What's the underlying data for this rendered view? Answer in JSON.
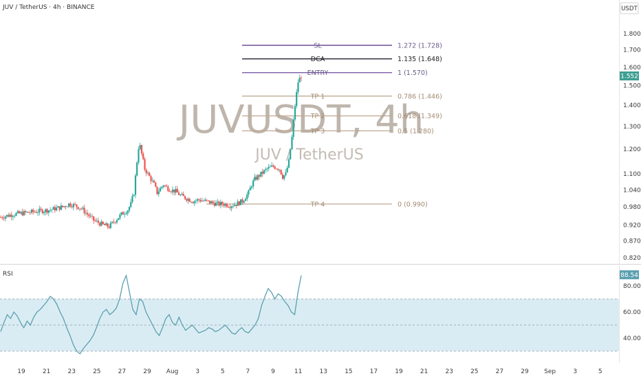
{
  "header": {
    "symbol_line": "JUV / TetherUS · 4h · BINANCE"
  },
  "watermark": {
    "ticker": "JUVUSDT, 4h",
    "name": "JUV / TetherUS"
  },
  "price_unit": "USDT",
  "current_price": "1.552",
  "rsi_label": "RSI",
  "rsi_current": "88.54",
  "colors": {
    "up": "#26a69a",
    "down": "#ef5350",
    "fib_sl": "#6a4c93",
    "fib_dca": "#2c2c3a",
    "fib_entry": "#7a5aa8",
    "fib_tp": "#bfa890",
    "rsi_line": "#5a9fb0",
    "rsi_band": "#bcdcea"
  },
  "chart_data": [
    {
      "type": "candlestick",
      "title": "JUV / TetherUS · 4h · BINANCE",
      "y_axis": {
        "scale": "log",
        "ylim": [
          0.8,
          1.9
        ],
        "ticks": [
          "1.800",
          "1.700",
          "1.600",
          "1.500",
          "1.400",
          "1.300",
          "1.200",
          "1.100",
          "1.040",
          "0.980",
          "0.920",
          "0.870",
          "0.820"
        ]
      },
      "x_axis": {
        "ticks": [
          "19",
          "21",
          "23",
          "25",
          "27",
          "29",
          "Aug",
          "3",
          "5",
          "7",
          "9",
          "11",
          "13",
          "15",
          "17",
          "19",
          "21",
          "23",
          "25",
          "27",
          "29",
          "Sep",
          "3",
          "5"
        ]
      },
      "price_path": [
        [
          0,
          0.945
        ],
        [
          4,
          0.955
        ],
        [
          8,
          0.96
        ],
        [
          12,
          0.965
        ],
        [
          16,
          0.97
        ],
        [
          20,
          0.98
        ],
        [
          22,
          0.99
        ],
        [
          24,
          0.985
        ],
        [
          26,
          0.975
        ],
        [
          28,
          0.955
        ],
        [
          30,
          0.935
        ],
        [
          33,
          0.92
        ],
        [
          35,
          0.915
        ],
        [
          37,
          0.935
        ],
        [
          39,
          0.955
        ],
        [
          41,
          0.97
        ],
        [
          42,
          0.99
        ],
        [
          43,
          1.03
        ],
        [
          44,
          1.15
        ],
        [
          44.7,
          1.23
        ],
        [
          45.5,
          1.18
        ],
        [
          46.5,
          1.12
        ],
        [
          47.5,
          1.1
        ],
        [
          48.5,
          1.08
        ],
        [
          49.5,
          1.06
        ],
        [
          50.5,
          1.03
        ],
        [
          51.5,
          1.045
        ],
        [
          52.5,
          1.06
        ],
        [
          53.5,
          1.05
        ],
        [
          55,
          1.04
        ],
        [
          56.5,
          1.035
        ],
        [
          58,
          1.02
        ],
        [
          60,
          1.01
        ],
        [
          62,
          1.0
        ],
        [
          64,
          1.005
        ],
        [
          66,
          1.0
        ],
        [
          68,
          0.995
        ],
        [
          70,
          0.99
        ],
        [
          72,
          0.99
        ],
        [
          74,
          0.985
        ],
        [
          76,
          0.99
        ],
        [
          78,
          1.0
        ],
        [
          80,
          1.03
        ],
        [
          81,
          1.06
        ],
        [
          82,
          1.08
        ],
        [
          84,
          1.1
        ],
        [
          86,
          1.12
        ],
        [
          88,
          1.13
        ],
        [
          90,
          1.12
        ],
        [
          91,
          1.09
        ],
        [
          92,
          1.1
        ],
        [
          93,
          1.15
        ],
        [
          94,
          1.25
        ],
        [
          95,
          1.4
        ],
        [
          96,
          1.52
        ],
        [
          97,
          1.552
        ]
      ],
      "fib_levels": [
        {
          "label": "SL",
          "text": "1.272 (1.728)",
          "value": 1.728,
          "style": "sl"
        },
        {
          "label": "DCA",
          "text": "1.135 (1.648)",
          "value": 1.648,
          "style": "dca"
        },
        {
          "label": "ENTRY",
          "text": "1 (1.570)",
          "value": 1.57,
          "style": "entry"
        },
        {
          "label": "TP 1",
          "text": "0.786 (1.446)",
          "value": 1.446,
          "style": "tp"
        },
        {
          "label": "TP 2",
          "text": "0.618 (1.349)",
          "value": 1.349,
          "style": "tp"
        },
        {
          "label": "TP 3",
          "text": "0.5 (1.280)",
          "value": 1.28,
          "style": "tp"
        },
        {
          "label": "TP 4",
          "text": "0 (0.990)",
          "value": 0.99,
          "style": "tp"
        }
      ]
    },
    {
      "type": "line",
      "title": "RSI",
      "ylim": [
        25,
        95
      ],
      "y_ticks": [
        "80.00",
        "60.00",
        "40.00"
      ],
      "bands": [
        70,
        50,
        30
      ],
      "series": [
        {
          "values": [
            45,
            52,
            58,
            55,
            60,
            57,
            52,
            48,
            53,
            50,
            56,
            60,
            62,
            65,
            68,
            72,
            70,
            66,
            60,
            55,
            48,
            42,
            35,
            30,
            28,
            32,
            35,
            38,
            42,
            48,
            55,
            60,
            62,
            58,
            60,
            63,
            70,
            82,
            88,
            75,
            62,
            58,
            70,
            68,
            60,
            55,
            50,
            45,
            42,
            48,
            55,
            58,
            52,
            50,
            56,
            50,
            46,
            48,
            50,
            47,
            44,
            45,
            46,
            48,
            47,
            45,
            46,
            48,
            50,
            47,
            44,
            43,
            46,
            48,
            45,
            44,
            47,
            50,
            55,
            65,
            72,
            78,
            75,
            70,
            74,
            72,
            68,
            65,
            60,
            58,
            75,
            88
          ]
        }
      ]
    }
  ]
}
